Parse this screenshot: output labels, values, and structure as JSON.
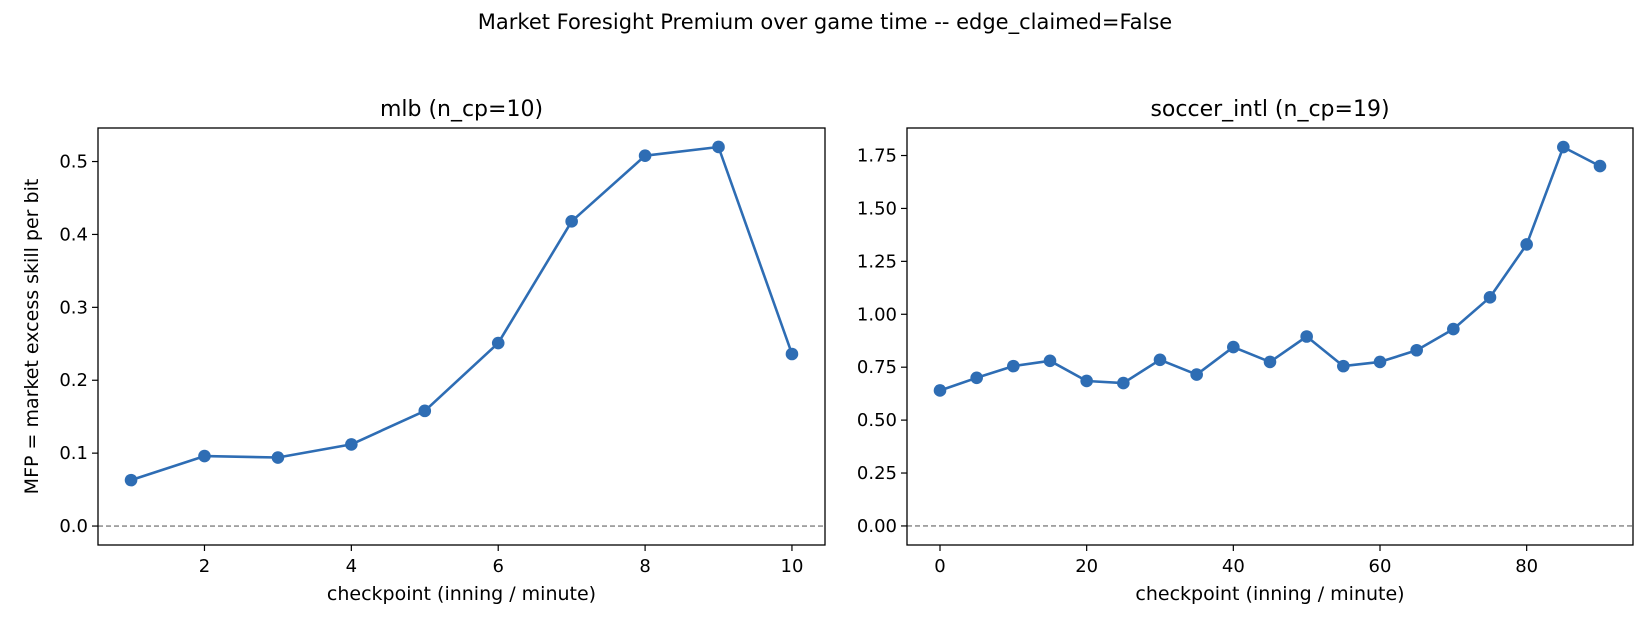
{
  "suptitle": "Market Foresight Premium over game time -- edge_claimed=False",
  "colors": {
    "series": "#2e6db4",
    "zero_line": "#808080",
    "axes": "#000000"
  },
  "chart_data": [
    {
      "type": "line",
      "title": "mlb (n_cp=10)",
      "xlabel": "checkpoint (inning / minute)",
      "ylabel": "MFP = market excess skill per bit",
      "x": [
        1,
        2,
        3,
        4,
        5,
        6,
        7,
        8,
        9,
        10
      ],
      "series": [
        {
          "values": [
            0.063,
            0.096,
            0.094,
            0.112,
            0.158,
            0.251,
            0.418,
            0.508,
            0.52,
            0.236
          ]
        }
      ],
      "xlim": [
        0.55,
        10.45
      ],
      "ylim": [
        -0.026,
        0.546
      ],
      "xticks": [
        2,
        4,
        6,
        8,
        10
      ],
      "xtick_labels": [
        "2",
        "4",
        "6",
        "8",
        "10"
      ],
      "yticks": [
        0.0,
        0.1,
        0.2,
        0.3,
        0.4,
        0.5
      ],
      "ytick_labels": [
        "0.0",
        "0.1",
        "0.2",
        "0.3",
        "0.4",
        "0.5"
      ],
      "reference_line": 0,
      "grid": false,
      "marker": "circle"
    },
    {
      "type": "line",
      "title": "soccer_intl (n_cp=19)",
      "xlabel": "checkpoint (inning / minute)",
      "ylabel": "",
      "x": [
        0,
        5,
        10,
        15,
        20,
        25,
        30,
        35,
        40,
        45,
        50,
        55,
        60,
        65,
        70,
        75,
        80,
        85,
        90
      ],
      "series": [
        {
          "values": [
            0.64,
            0.7,
            0.755,
            0.78,
            0.685,
            0.675,
            0.785,
            0.715,
            0.845,
            0.775,
            0.895,
            0.755,
            0.775,
            0.83,
            0.93,
            1.08,
            1.33,
            1.79,
            1.7
          ]
        }
      ],
      "xlim": [
        -4.5,
        94.5
      ],
      "ylim": [
        -0.09,
        1.88
      ],
      "xticks": [
        0,
        20,
        40,
        60,
        80
      ],
      "xtick_labels": [
        "0",
        "20",
        "40",
        "60",
        "80"
      ],
      "yticks": [
        0.0,
        0.25,
        0.5,
        0.75,
        1.0,
        1.25,
        1.5,
        1.75
      ],
      "ytick_labels": [
        "0.00",
        "0.25",
        "0.50",
        "0.75",
        "1.00",
        "1.25",
        "1.50",
        "1.75"
      ],
      "reference_line": 0,
      "grid": false,
      "marker": "circle"
    }
  ]
}
